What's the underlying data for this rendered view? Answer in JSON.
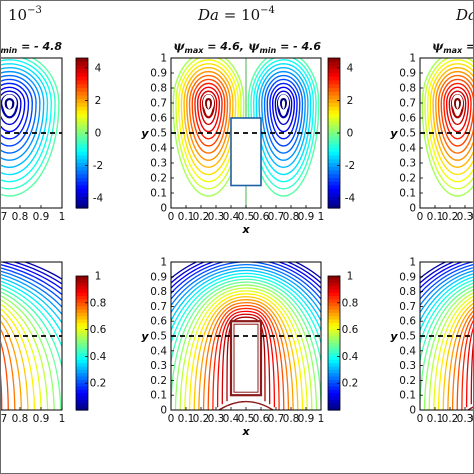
{
  "figure": {
    "columns": [
      {
        "title_text": "10",
        "title_exp": "−3",
        "title_prefix": ""
      },
      {
        "title_text": "10",
        "title_exp": "−4",
        "title_prefix": "Da = "
      },
      {
        "title_text": "",
        "title_exp": "",
        "title_prefix": "Da"
      }
    ],
    "row_top_annotations": [
      {
        "text": "ψ min = - 4.8",
        "parts": [
          {
            "sym": "ψ",
            "sub": "min",
            "val": "= - 4.8"
          }
        ]
      },
      {
        "text": "ψ max = 4.6, ψ min = - 4.6",
        "parts": [
          {
            "sym": "ψ",
            "sub": "max",
            "val": "= 4.6,"
          },
          {
            "sym": "ψ",
            "sub": "min",
            "val": "= - 4.6"
          }
        ]
      },
      {
        "text": "ψ max =",
        "parts": [
          {
            "sym": "ψ",
            "sub": "max",
            "val": "="
          }
        ]
      }
    ],
    "colors": {
      "frame": "#6a6a6a",
      "block": "#1f5fa8",
      "block_bottom": "#8b1a1a",
      "centerline": "#4caf50",
      "dashed": "#000000"
    }
  },
  "chart_data": [
    {
      "type": "contour",
      "name": "streamlines",
      "xlabel": "x",
      "ylabel": "y",
      "xlim": [
        0,
        1
      ],
      "ylim": [
        0,
        1
      ],
      "xticks": [
        "0",
        "0.1",
        "0.2",
        "0.3",
        "0.4",
        "0.5",
        "0.6",
        "0.7",
        "0.8",
        "0.9",
        "1"
      ],
      "yticks": [
        "0",
        "0.1",
        "0.2",
        "0.3",
        "0.4",
        "0.5",
        "0.6",
        "0.7",
        "0.8",
        "0.9",
        "1"
      ],
      "colorbar_ticks": [
        "4",
        "2",
        "0",
        "-2",
        "-4"
      ],
      "colorbar_range": [
        -4.6,
        4.6
      ],
      "dashed_line_y": 0.5,
      "block": {
        "x": [
          0.4,
          0.6
        ],
        "y": [
          0.15,
          0.6
        ]
      },
      "vortex_centers": [
        {
          "x": 0.25,
          "y": 0.7,
          "value": 4.6
        },
        {
          "x": 0.75,
          "y": 0.7,
          "value": -4.6
        }
      ],
      "psi_max": 4.6,
      "psi_min": -4.6
    },
    {
      "type": "contour",
      "name": "isotherms",
      "xlabel": "x",
      "ylabel": "y",
      "xlim": [
        0,
        1
      ],
      "ylim": [
        0,
        1
      ],
      "xticks": [
        "0",
        "0.1",
        "0.2",
        "0.3",
        "0.4",
        "0.5",
        "0.6",
        "0.7",
        "0.8",
        "0.9",
        "1"
      ],
      "yticks": [
        "0",
        "0.1",
        "0.2",
        "0.3",
        "0.4",
        "0.5",
        "0.6",
        "0.7",
        "0.8",
        "0.9",
        "1"
      ],
      "colorbar_ticks": [
        "1",
        "0.8",
        "0.6",
        "0.4",
        "0.2"
      ],
      "colorbar_range": [
        0,
        1
      ],
      "dashed_line_y": 0.5,
      "block": {
        "x": [
          0.4,
          0.6
        ],
        "y": [
          0.1,
          0.6
        ]
      }
    }
  ]
}
